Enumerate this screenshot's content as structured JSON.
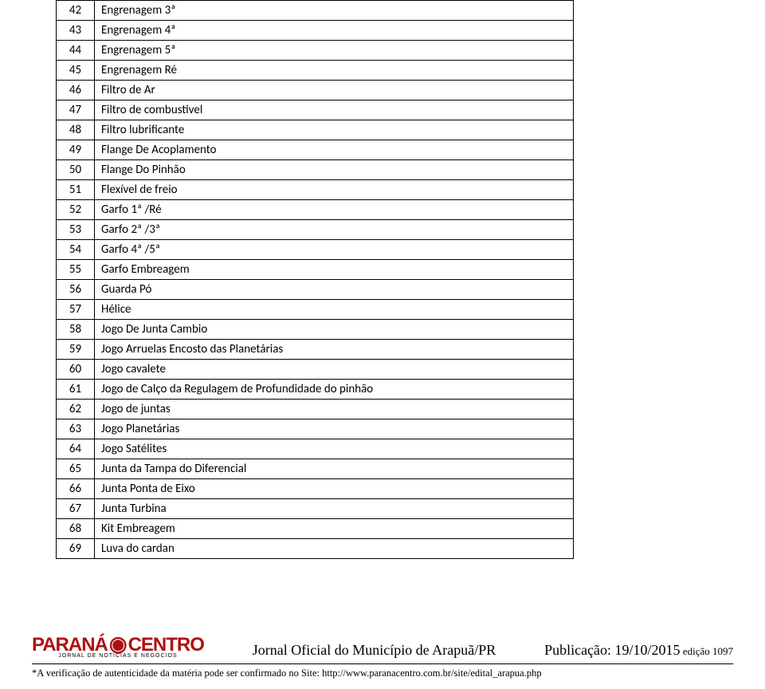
{
  "table": {
    "rows": [
      {
        "num": "42",
        "desc": "Engrenagem 3ª"
      },
      {
        "num": "43",
        "desc": "Engrenagem 4ª"
      },
      {
        "num": "44",
        "desc": "Engrenagem 5ª"
      },
      {
        "num": "45",
        "desc": "Engrenagem Ré"
      },
      {
        "num": "46",
        "desc": "Filtro de Ar"
      },
      {
        "num": "47",
        "desc": "Filtro de combustivel"
      },
      {
        "num": "48",
        "desc": "Filtro lubrificante"
      },
      {
        "num": "49",
        "desc": "Flange De Acoplamento"
      },
      {
        "num": "50",
        "desc": "Flange Do Pinhão"
      },
      {
        "num": "51",
        "desc": "Flexível de freio"
      },
      {
        "num": "52",
        "desc": "Garfo 1ª  /Ré"
      },
      {
        "num": "53",
        "desc": "Garfo 2ª /3ª"
      },
      {
        "num": "54",
        "desc": "Garfo 4ª /5ª"
      },
      {
        "num": "55",
        "desc": "Garfo Embreagem"
      },
      {
        "num": "56",
        "desc": "Guarda Pó"
      },
      {
        "num": "57",
        "desc": "Hélice"
      },
      {
        "num": "58",
        "desc": "Jogo  De Junta Cambio"
      },
      {
        "num": "59",
        "desc": "Jogo Arruelas Encosto das Planetárias"
      },
      {
        "num": "60",
        "desc": "Jogo cavalete"
      },
      {
        "num": "61",
        "desc": "Jogo de Calço da Regulagem de Profundidade do pinhão"
      },
      {
        "num": "62",
        "desc": "Jogo de juntas"
      },
      {
        "num": "63",
        "desc": "Jogo Planetárias"
      },
      {
        "num": "64",
        "desc": "Jogo Satélites"
      },
      {
        "num": "65",
        "desc": "Junta da Tampa do Diferencial"
      },
      {
        "num": "66",
        "desc": "Junta Ponta de Eixo"
      },
      {
        "num": "67",
        "desc": "Junta Turbina"
      },
      {
        "num": "68",
        "desc": "Kit Embreagem"
      },
      {
        "num": "69",
        "desc": "Luva do cardan"
      }
    ]
  },
  "footer": {
    "logo_left": "PARANÁ",
    "logo_right": "CENTRO",
    "logo_sub": "JORNAL DE NOTÍCIAS E NEGÓCIOS",
    "center": "Jornal Oficial do Município de Arapuã/PR",
    "pub_label": "Publicação: ",
    "pub_date": "19/10/2015",
    "edition_label": " edição ",
    "edition_num": "1097",
    "note": "*A verificação de autenticidade da matéria pode ser confirmado no Site: http://www.paranacentro.com.br/site/edital_arapua.php"
  },
  "colors": {
    "logo_red": "#b01010",
    "border": "#000000",
    "text": "#000000",
    "background": "#ffffff"
  }
}
